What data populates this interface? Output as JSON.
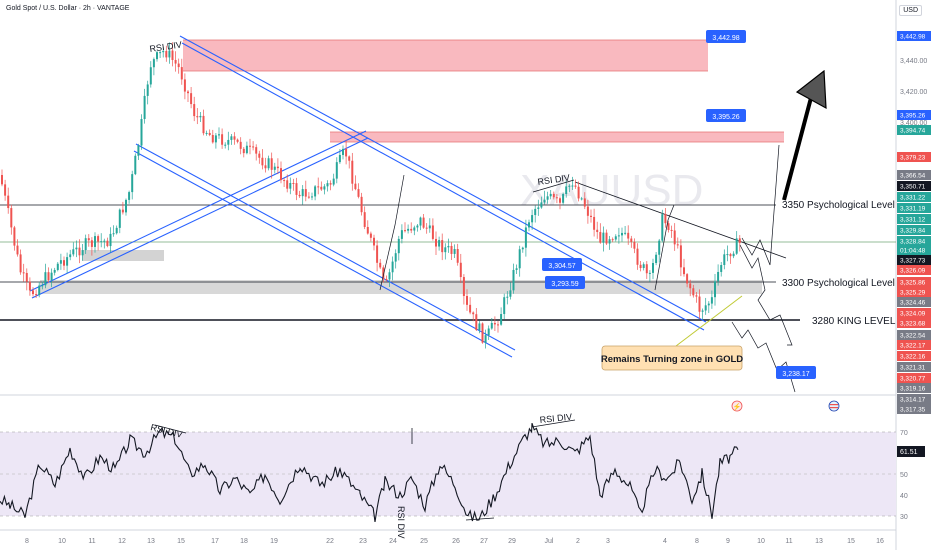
{
  "header": {
    "symbol_line": "Gold Spot / U.S. Dollar · 2h · VANTAGE",
    "currency": "USD"
  },
  "chart_data": [
    {
      "type": "candlestick",
      "title": "Gold Spot / U.S. Dollar · 2h · VANTAGE",
      "ylim": [
        3315,
        3452
      ],
      "price_axis_ticks": [
        3440,
        3420,
        3400
      ],
      "price_axis_labels": [
        {
          "value": 3442.98,
          "text": "3,442.98",
          "color": "#2962ff"
        },
        {
          "value": 3395.26,
          "text": "3,395.26",
          "color": "#2962ff"
        },
        {
          "value": 3394.74,
          "text": "3,394.74",
          "color": "#26a69a"
        },
        {
          "value": 3379.23,
          "text": "3,379.23",
          "color": "#ef5350"
        },
        {
          "value": 3366.54,
          "text": "3,366.54",
          "color": "#787b86"
        },
        {
          "value": 3350.71,
          "text": "3,350.71",
          "color": "#131722"
        },
        {
          "value": 3331.22,
          "text": "3,331.22",
          "color": "#26a69a"
        },
        {
          "value": 3331.19,
          "text": "3,331.19",
          "color": "#26a69a"
        },
        {
          "value": 3331.12,
          "text": "3,331.12",
          "color": "#26a69a"
        },
        {
          "value": 3329.84,
          "text": "3,329.84",
          "color": "#26a69a"
        },
        {
          "value": 3328.84,
          "text": "3,328.84",
          "color": "#26a69a"
        },
        {
          "value": 3328.2,
          "text": "01:04:48",
          "color": "#26a69a"
        },
        {
          "value": 3327.73,
          "text": "3,327.73",
          "color": "#131722"
        },
        {
          "value": 3326.09,
          "text": "3,326.09",
          "color": "#ef5350"
        },
        {
          "value": 3325.86,
          "text": "3,325.86",
          "color": "#ef5350"
        },
        {
          "value": 3325.29,
          "text": "3,325.29",
          "color": "#ef5350"
        },
        {
          "value": 3324.46,
          "text": "3,324.46",
          "color": "#787b86"
        },
        {
          "value": 3324.09,
          "text": "3,324.09",
          "color": "#ef5350"
        },
        {
          "value": 3323.68,
          "text": "3,323.68",
          "color": "#ef5350"
        },
        {
          "value": 3322.54,
          "text": "3,322.54",
          "color": "#787b86"
        },
        {
          "value": 3322.17,
          "text": "3,322.17",
          "color": "#ef5350"
        },
        {
          "value": 3322.16,
          "text": "3,322.16",
          "color": "#ef5350"
        },
        {
          "value": 3321.31,
          "text": "3,321.31",
          "color": "#787b86"
        },
        {
          "value": 3320.77,
          "text": "3,320.77",
          "color": "#ef5350"
        },
        {
          "value": 3319.16,
          "text": "3,319.16",
          "color": "#787b86"
        },
        {
          "value": 3314.17,
          "text": "3,314.17",
          "color": "#787b86"
        },
        {
          "value": 3317.35,
          "text": "3,317.35",
          "color": "#787b86"
        }
      ],
      "x_axis_labels": [
        "8",
        "10",
        "11",
        "12",
        "13",
        "15",
        "17",
        "18",
        "19",
        "22",
        "23",
        "24",
        "25",
        "26",
        "27",
        "29",
        "Jul",
        "2",
        "3",
        "4",
        "8",
        "9",
        "10",
        "11",
        "13",
        "15",
        "16",
        "17"
      ],
      "levels": [
        {
          "value": 3350,
          "label": "3350 Psychological Level"
        },
        {
          "value": 3300,
          "label": "3300 Psychological Level"
        },
        {
          "value": 3280,
          "label": "3280 KING LEVEL"
        }
      ],
      "callouts": [
        "3,442.98",
        "3,395.26",
        "3,304.57",
        "3,293.59",
        "3,238.17"
      ],
      "annotations": [
        "RSI DIV",
        "RSI DIV",
        "Remains Turning zone in GOLD"
      ],
      "watermark": "XAUUSD"
    },
    {
      "type": "line",
      "title": "RSI",
      "ylim": [
        25,
        75
      ],
      "y_ticks": [
        70,
        60,
        50,
        40,
        30
      ],
      "current": 61.51,
      "annotations": [
        "RSI DIV",
        "RSI DIV",
        "RSI DIV"
      ]
    }
  ],
  "colors": {
    "up": "#26a69a",
    "down": "#ef5350",
    "channel": "#2962ff",
    "zone_red": "#f28b95",
    "zone_gray": "#c8c8c8",
    "rsi": "#131722",
    "rsi_band": "#ede7f6",
    "callout_bg": "#2962ff"
  }
}
